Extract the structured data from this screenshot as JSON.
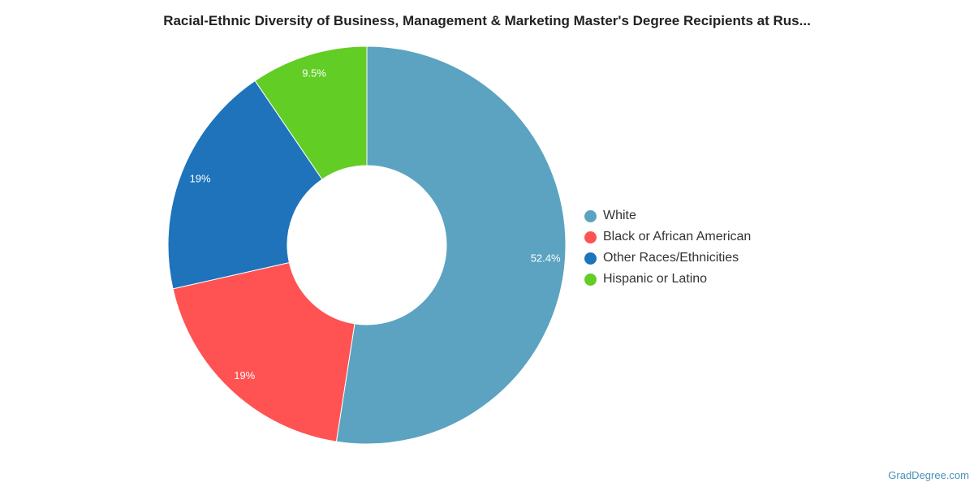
{
  "chart_data": {
    "type": "pie",
    "title": "Racial-Ethnic Diversity of Business, Management & Marketing Master's Degree Recipients at Rus...",
    "slices": [
      {
        "label": "White",
        "value": 52.4,
        "display": "52.4%",
        "color": "#5ba3c1"
      },
      {
        "label": "Black or African American",
        "value": 19,
        "display": "19%",
        "color": "#ff5252"
      },
      {
        "label": "Other Races/Ethnicities",
        "value": 19,
        "display": "19%",
        "color": "#1e73bb"
      },
      {
        "label": "Hispanic or Latino",
        "value": 9.5,
        "display": "9.5%",
        "color": "#62cd25"
      }
    ],
    "donut": true,
    "legend_position": "right"
  },
  "watermark": "GradDegree.com"
}
